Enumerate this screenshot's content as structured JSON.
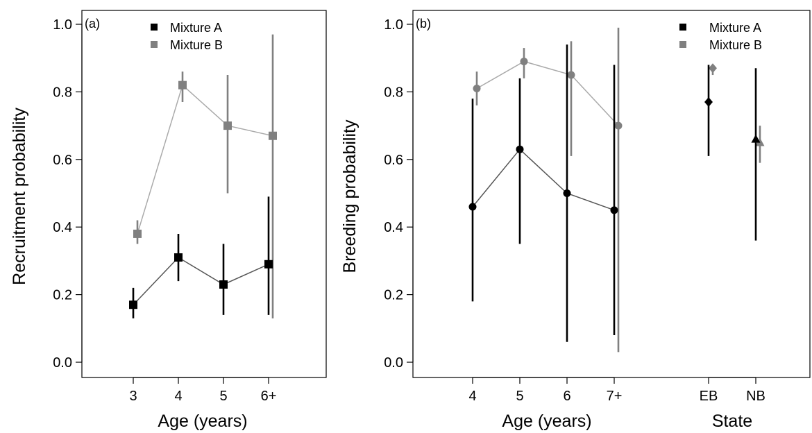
{
  "colors": {
    "mixture_a": "#000000",
    "mixture_b": "#808080",
    "line_a": "#555555",
    "line_b": "#aaaaaa",
    "axis": "#000000"
  },
  "chart_data": [
    {
      "type": "scatter",
      "panel_label": "(a)",
      "xlabel": "Age (years)",
      "ylabel": "Recruitment probability",
      "ylim": [
        0,
        1
      ],
      "yticks": [
        "0.0",
        "0.2",
        "0.4",
        "0.6",
        "0.8",
        "1.0"
      ],
      "categories": [
        "3",
        "4",
        "5",
        "6+"
      ],
      "legend": {
        "position": "top",
        "entries": [
          "Mixture A",
          "Mixture B"
        ]
      },
      "grid": false,
      "series": [
        {
          "name": "Mixture A",
          "marker": "square",
          "values": [
            0.17,
            0.31,
            0.23,
            0.29
          ],
          "lower": [
            0.13,
            0.24,
            0.14,
            0.14
          ],
          "upper": [
            0.22,
            0.38,
            0.35,
            0.49
          ]
        },
        {
          "name": "Mixture B",
          "marker": "square",
          "values": [
            0.38,
            0.82,
            0.7,
            0.67
          ],
          "lower": [
            0.35,
            0.77,
            0.5,
            0.13
          ],
          "upper": [
            0.42,
            0.86,
            0.85,
            0.97
          ]
        }
      ]
    },
    {
      "type": "scatter",
      "panel_label": "(b)",
      "xlabel": "Age (years)",
      "xlabel_2": "State",
      "ylabel": "Breeding probability",
      "ylim": [
        0,
        1
      ],
      "yticks": [
        "0.0",
        "0.2",
        "0.4",
        "0.6",
        "0.8",
        "1.0"
      ],
      "categories": [
        "4",
        "5",
        "6",
        "7+"
      ],
      "state_categories": [
        "EB",
        "NB"
      ],
      "legend": {
        "position": "top-right",
        "entries": [
          "Mixture A",
          "Mixture B"
        ]
      },
      "grid": false,
      "series": [
        {
          "name": "Mixture A",
          "marker": "circle",
          "values": [
            0.46,
            0.63,
            0.5,
            0.45
          ],
          "lower": [
            0.18,
            0.35,
            0.06,
            0.08
          ],
          "upper": [
            0.78,
            0.84,
            0.94,
            0.88
          ]
        },
        {
          "name": "Mixture B",
          "marker": "circle",
          "values": [
            0.81,
            0.89,
            0.85,
            0.7
          ],
          "lower": [
            0.76,
            0.84,
            0.61,
            0.03
          ],
          "upper": [
            0.86,
            0.93,
            0.95,
            0.99
          ]
        }
      ],
      "state_series": [
        {
          "name": "Mixture A",
          "markers": [
            "diamond",
            "triangle"
          ],
          "values": [
            0.77,
            0.66
          ],
          "lower": [
            0.61,
            0.36
          ],
          "upper": [
            0.88,
            0.87
          ]
        },
        {
          "name": "Mixture B",
          "markers": [
            "diamond",
            "triangle"
          ],
          "values": [
            0.87,
            0.65
          ],
          "lower": [
            0.85,
            0.59
          ],
          "upper": [
            0.88,
            0.7
          ]
        }
      ]
    }
  ]
}
